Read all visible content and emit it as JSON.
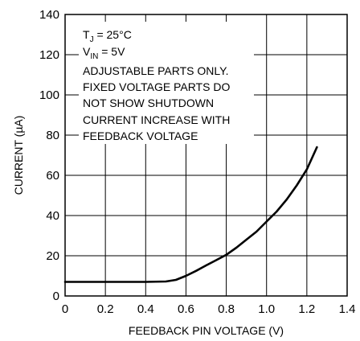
{
  "chart_data": {
    "type": "line",
    "xlabel": "FEEDBACK PIN VOLTAGE (V)",
    "ylabel": "CURRENT (µA)",
    "xlim": [
      0,
      1.4
    ],
    "ylim": [
      0,
      140
    ],
    "x_ticks": [
      "0",
      "0.2",
      "0.4",
      "0.6",
      "0.8",
      "1.0",
      "1.2",
      "1.4"
    ],
    "y_ticks": [
      "0",
      "20",
      "40",
      "60",
      "80",
      "100",
      "120",
      "140"
    ],
    "x_tick_values": [
      0,
      0.2,
      0.4,
      0.6,
      0.8,
      1.0,
      1.2,
      1.4
    ],
    "y_tick_values": [
      0,
      20,
      40,
      60,
      80,
      100,
      120,
      140
    ],
    "grid": true,
    "series": [
      {
        "x": [
          0,
          0.1,
          0.2,
          0.3,
          0.4,
          0.5,
          0.55,
          0.6,
          0.65,
          0.7,
          0.75,
          0.8,
          0.85,
          0.9,
          0.95,
          1.0,
          1.05,
          1.1,
          1.15,
          1.2,
          1.25
        ],
        "y": [
          7,
          7,
          7,
          7,
          7,
          7.2,
          8,
          10,
          12.5,
          15.2,
          17.8,
          20.5,
          24,
          28,
          32,
          37,
          42,
          48,
          55,
          63,
          74
        ]
      }
    ],
    "annotation": {
      "line1": {
        "main": "T",
        "sub": "J",
        "rest": " = 25°C"
      },
      "line2": {
        "main": "V",
        "sub": "IN",
        "rest": " = 5V"
      },
      "lines": [
        "ADJUSTABLE PARTS ONLY.",
        "FIXED VOLTAGE PARTS DO",
        "NOT SHOW SHUTDOWN",
        "CURRENT INCREASE WITH",
        "FEEDBACK VOLTAGE"
      ]
    }
  }
}
